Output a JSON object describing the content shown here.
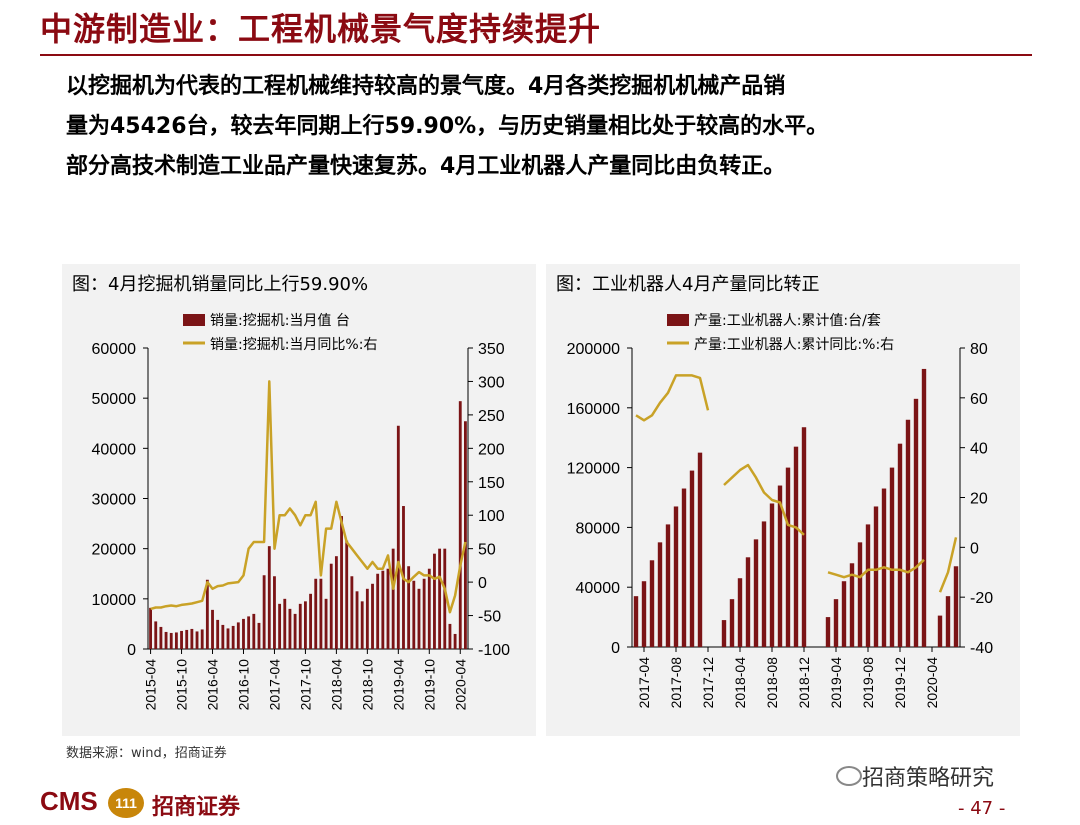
{
  "header": {
    "title": "中游制造业：工程机械景气度持续提升",
    "lines": [
      "以挖掘机为代表的工程机械维持较高的景气度。4月各类挖掘机机械产品销",
      "量为45426台，较去年同期上行59.90%，与历史销量相比处于较高的水平。",
      "部分高技术制造工业品产量快速复苏。4月工业机器人产量同比由负转正。"
    ]
  },
  "footer": {
    "source": "数据来源：wind，招商证券",
    "logo": "CMS",
    "logo_badge": "111",
    "company": "招商证券",
    "wechat": "招商策略研究",
    "page": "- 47 -"
  },
  "colors": {
    "brand": "#8b0a12",
    "bar": "#7b1416",
    "line": "#c9a227"
  },
  "chart_data": [
    {
      "type": "bar",
      "title": "图：4月挖掘机销量同比上行59.90%",
      "legend": [
        "销量:挖掘机:当月值 台",
        "销量:挖掘机:当月同比%:右"
      ],
      "x_ticks": [
        "2015-04",
        "2015-10",
        "2016-04",
        "2016-10",
        "2017-04",
        "2017-10",
        "2018-04",
        "2018-10",
        "2019-04",
        "2019-10",
        "2020-04"
      ],
      "y_left_ticks": [
        "0",
        "10000",
        "20000",
        "30000",
        "40000",
        "50000",
        "60000"
      ],
      "y_right_ticks": [
        "-100",
        "-50",
        "0",
        "50",
        "100",
        "150",
        "200",
        "250",
        "300",
        "350"
      ],
      "ylim_left": [
        0,
        60000
      ],
      "ylim_right": [
        -100,
        350
      ],
      "x_start": "2015-04",
      "series": [
        {
          "name": "销量:挖掘机:当月值 台",
          "axis": "left",
          "values": [
            8200,
            5500,
            4400,
            3400,
            3200,
            3300,
            3600,
            3800,
            4000,
            3500,
            3900,
            13800,
            7800,
            5800,
            4800,
            4100,
            4600,
            5300,
            6000,
            6500,
            7000,
            5200,
            14700,
            20500,
            14500,
            9000,
            10000,
            8000,
            7000,
            9000,
            9500,
            11000,
            14000,
            14000,
            10000,
            17000,
            18500,
            26500,
            21600,
            14500,
            11500,
            9500,
            12000,
            13000,
            15000,
            15600,
            16000,
            20000,
            44500,
            28500,
            16500,
            13600,
            12000,
            14000,
            16000,
            19000,
            20000,
            20000,
            5000,
            3000,
            49400,
            45400
          ]
        },
        {
          "name": "销量:挖掘机:当月同比%:右",
          "axis": "right",
          "values": [
            -40,
            -38,
            -38,
            -36,
            -35,
            -36,
            -34,
            -33,
            -32,
            -30,
            -28,
            0,
            -10,
            -6,
            -5,
            -2,
            -1,
            0,
            10,
            50,
            60,
            60,
            60,
            300,
            50,
            100,
            100,
            110,
            100,
            85,
            100,
            100,
            120,
            10,
            80,
            80,
            120,
            90,
            60,
            50,
            40,
            30,
            20,
            30,
            20,
            20,
            40,
            -10,
            30,
            5,
            0,
            8,
            15,
            10,
            10,
            5,
            8,
            -10,
            -45,
            -20,
            25,
            60
          ]
        }
      ]
    },
    {
      "type": "bar",
      "title": "图：工业机器人4月产量同比转正",
      "legend": [
        "产量:工业机器人:累计值:台/套",
        "产量:工业机器人:累计同比:%:右"
      ],
      "x_ticks": [
        "2017-04",
        "2017-08",
        "2017-12",
        "2018-04",
        "2018-08",
        "2018-12",
        "2019-04",
        "2019-08",
        "2019-12",
        "2020-04"
      ],
      "y_left_ticks": [
        "0",
        "40000",
        "80000",
        "120000",
        "160000",
        "200000"
      ],
      "y_right_ticks": [
        "-40",
        "-20",
        "0",
        "20",
        "40",
        "60",
        "80"
      ],
      "ylim_left": [
        0,
        200000
      ],
      "ylim_right": [
        -40,
        80
      ],
      "x_start": "2017-03",
      "series": [
        {
          "name": "产量:工业机器人:累计值:台/套",
          "axis": "left",
          "values": [
            34000,
            44000,
            58000,
            70000,
            82000,
            94000,
            106000,
            118000,
            130000,
            null,
            null,
            18000,
            32000,
            46000,
            60000,
            72000,
            84000,
            96000,
            108000,
            120000,
            134000,
            147000,
            null,
            null,
            20000,
            32000,
            44000,
            56000,
            70000,
            82000,
            94000,
            106000,
            120000,
            136000,
            152000,
            166000,
            186000,
            null,
            21000,
            34000,
            54000
          ]
        },
        {
          "name": "产量:工业机器人:累计同比:%:右",
          "axis": "right",
          "values": [
            53,
            51,
            53,
            58,
            62,
            69,
            69,
            69,
            68,
            55,
            null,
            25,
            28,
            31,
            33,
            28,
            22,
            19,
            18,
            9,
            8,
            5,
            null,
            null,
            -10,
            -11,
            -12,
            -11,
            -12,
            -9,
            -9,
            -8,
            -9,
            -9,
            -10,
            -8,
            -5,
            null,
            -18,
            -10,
            4
          ]
        }
      ]
    }
  ]
}
